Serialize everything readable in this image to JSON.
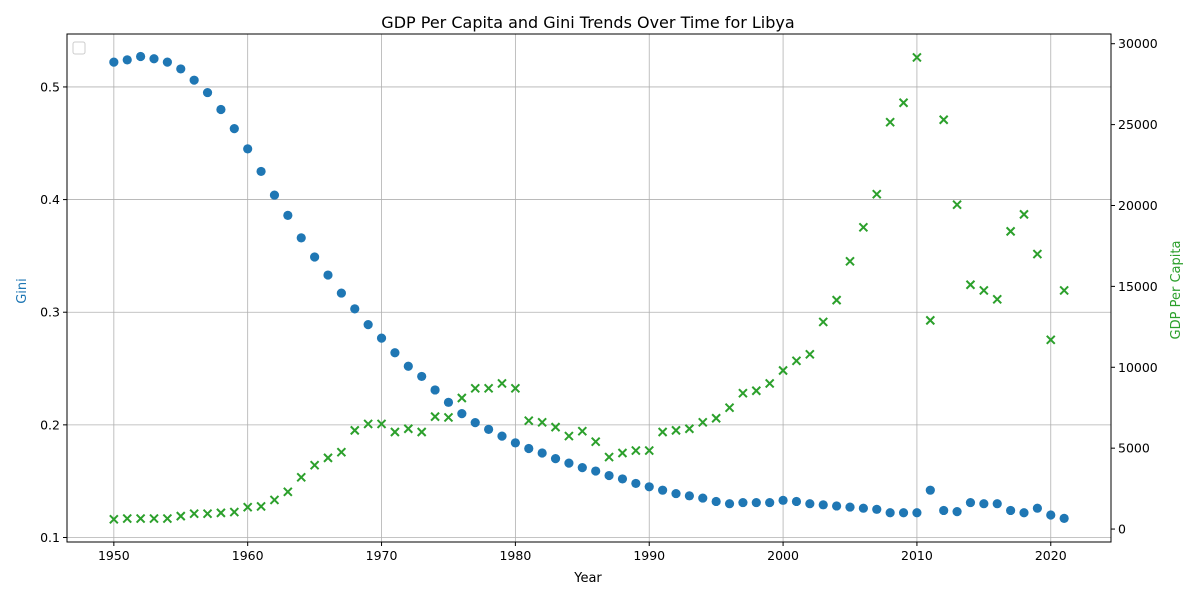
{
  "chart_data": {
    "type": "scatter",
    "title": "GDP Per Capita and Gini Trends Over Time for Libya",
    "xlabel": "Year",
    "ylabel_left": "Gini",
    "ylabel_right": "GDP Per Capita",
    "xlim": [
      1946.5,
      2024.5
    ],
    "ylim_left": [
      0.096,
      0.547
    ],
    "ylim_right": [
      -800,
      30600
    ],
    "x_ticks": [
      1950,
      1960,
      1970,
      1980,
      1990,
      2000,
      2010,
      2020
    ],
    "y_left_ticks": [
      0.1,
      0.2,
      0.3,
      0.4,
      0.5
    ],
    "y_right_ticks": [
      0,
      5000,
      10000,
      15000,
      20000,
      25000,
      30000
    ],
    "grid": true,
    "legend": "top-left (empty)",
    "colors": {
      "gini": "#1f77b4",
      "gdp": "#2ca02c"
    },
    "series": [
      {
        "axis": "left",
        "marker": "circle",
        "x": [
          1950,
          1951,
          1952,
          1953,
          1954,
          1955,
          1956,
          1957,
          1958,
          1959,
          1960,
          1961,
          1962,
          1963,
          1964,
          1965,
          1966,
          1967,
          1968,
          1969,
          1970,
          1971,
          1972,
          1973,
          1974,
          1975,
          1976,
          1977,
          1978,
          1979,
          1980,
          1981,
          1982,
          1983,
          1984,
          1985,
          1986,
          1987,
          1988,
          1989,
          1990,
          1991,
          1992,
          1993,
          1994,
          1995,
          1996,
          1997,
          1998,
          1999,
          2000,
          2001,
          2002,
          2003,
          2004,
          2005,
          2006,
          2007,
          2008,
          2009,
          2010,
          2011,
          2012,
          2013,
          2014,
          2015,
          2016,
          2017,
          2018,
          2019,
          2020,
          2021
        ],
        "values": [
          0.522,
          0.524,
          0.527,
          0.525,
          0.522,
          0.516,
          0.506,
          0.495,
          0.48,
          0.463,
          0.445,
          0.425,
          0.404,
          0.386,
          0.366,
          0.349,
          0.333,
          0.317,
          0.303,
          0.289,
          0.277,
          0.264,
          0.252,
          0.243,
          0.231,
          0.22,
          0.21,
          0.202,
          0.196,
          0.19,
          0.184,
          0.179,
          0.175,
          0.17,
          0.166,
          0.162,
          0.159,
          0.155,
          0.152,
          0.148,
          0.145,
          0.142,
          0.139,
          0.137,
          0.135,
          0.132,
          0.13,
          0.131,
          0.131,
          0.131,
          0.133,
          0.132,
          0.13,
          0.129,
          0.128,
          0.127,
          0.126,
          0.125,
          0.122,
          0.122,
          0.122,
          0.142,
          0.124,
          0.123,
          0.131,
          0.13,
          0.13,
          0.124,
          0.122,
          0.126,
          0.12,
          0.117
        ]
      },
      {
        "axis": "right",
        "marker": "x",
        "x": [
          1950,
          1951,
          1952,
          1953,
          1954,
          1955,
          1956,
          1957,
          1958,
          1959,
          1960,
          1961,
          1962,
          1963,
          1964,
          1965,
          1966,
          1967,
          1968,
          1969,
          1970,
          1971,
          1972,
          1973,
          1974,
          1975,
          1976,
          1977,
          1978,
          1979,
          1980,
          1981,
          1982,
          1983,
          1984,
          1985,
          1986,
          1987,
          1988,
          1989,
          1990,
          1991,
          1992,
          1993,
          1994,
          1995,
          1996,
          1997,
          1998,
          1999,
          2000,
          2001,
          2002,
          2003,
          2004,
          2005,
          2006,
          2007,
          2008,
          2009,
          2010,
          2011,
          2012,
          2013,
          2014,
          2015,
          2016,
          2017,
          2018,
          2019,
          2020,
          2021
        ],
        "values": [
          600,
          650,
          650,
          650,
          650,
          800,
          950,
          950,
          1000,
          1050,
          1350,
          1400,
          1800,
          2300,
          3200,
          3950,
          4400,
          4750,
          6100,
          6500,
          6500,
          6000,
          6200,
          6000,
          6950,
          6900,
          8100,
          8700,
          8700,
          9000,
          8700,
          6700,
          6600,
          6300,
          5750,
          6050,
          5400,
          4450,
          4700,
          4850,
          4850,
          6000,
          6100,
          6200,
          6600,
          6850,
          7500,
          8400,
          8550,
          9000,
          9800,
          10400,
          10800,
          12800,
          14150,
          16550,
          18650,
          20700,
          25150,
          26350,
          29150,
          12900,
          25300,
          20050,
          15100,
          14750,
          14200,
          18400,
          19450,
          17000,
          11700,
          14750
        ]
      }
    ]
  }
}
